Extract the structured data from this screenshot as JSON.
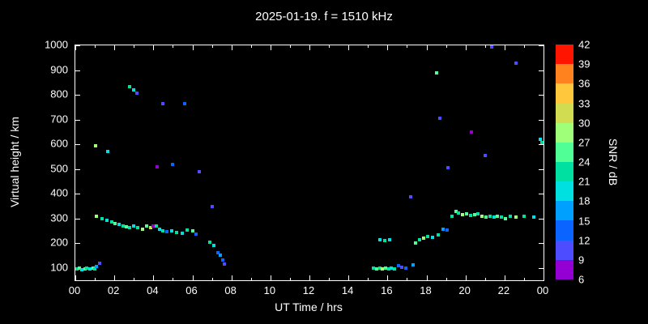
{
  "title": "2025-01-19. f = 1510 kHz",
  "chart_data": {
    "type": "scatter",
    "title": "2025-01-19. f = 1510 kHz",
    "xlabel": "UT Time / hrs",
    "ylabel": "Virtual height / km",
    "xlim": [
      0,
      24
    ],
    "ylim": [
      50,
      1000
    ],
    "background": "#000000",
    "axis_color": "#ffffff",
    "grid": false,
    "x_ticks": [
      {
        "v": 0,
        "label": "00"
      },
      {
        "v": 2,
        "label": "02"
      },
      {
        "v": 4,
        "label": "04"
      },
      {
        "v": 6,
        "label": "06"
      },
      {
        "v": 8,
        "label": "08"
      },
      {
        "v": 10,
        "label": "10"
      },
      {
        "v": 12,
        "label": "12"
      },
      {
        "v": 14,
        "label": "14"
      },
      {
        "v": 16,
        "label": "16"
      },
      {
        "v": 18,
        "label": "18"
      },
      {
        "v": 20,
        "label": "20"
      },
      {
        "v": 22,
        "label": "22"
      },
      {
        "v": 24,
        "label": "00"
      }
    ],
    "y_ticks": [
      100,
      200,
      300,
      400,
      500,
      600,
      700,
      800,
      900,
      1000
    ],
    "colorbar": {
      "label": "SNR / dB",
      "ticks": [
        6,
        9,
        12,
        15,
        18,
        21,
        24,
        27,
        30,
        33,
        36,
        39,
        42
      ],
      "segment_colors": [
        "#9400d3",
        "#4d4dff",
        "#0a64ff",
        "#00a0ff",
        "#00e0e0",
        "#00e0a0",
        "#50ff96",
        "#a0ff78",
        "#d2dc50",
        "#ffc83c",
        "#ff821e",
        "#ff1400"
      ]
    },
    "points_format": [
      "ut_hours",
      "virtual_height_km",
      "snr_db"
    ],
    "points": [
      [
        0.1,
        95,
        21
      ],
      [
        0.2,
        100,
        24
      ],
      [
        0.35,
        92,
        18
      ],
      [
        0.5,
        97,
        24
      ],
      [
        0.6,
        100,
        21
      ],
      [
        0.75,
        95,
        18
      ],
      [
        0.9,
        100,
        24
      ],
      [
        1.0,
        96,
        21
      ],
      [
        1.1,
        105,
        15
      ],
      [
        1.25,
        120,
        9
      ],
      [
        1.1,
        310,
        27
      ],
      [
        1.35,
        300,
        21
      ],
      [
        1.6,
        292,
        18
      ],
      [
        1.85,
        285,
        21
      ],
      [
        2.05,
        280,
        24
      ],
      [
        2.25,
        276,
        18
      ],
      [
        2.45,
        270,
        21
      ],
      [
        2.6,
        265,
        24
      ],
      [
        2.8,
        263,
        21
      ],
      [
        3.0,
        268,
        18
      ],
      [
        3.2,
        262,
        21
      ],
      [
        3.45,
        258,
        27
      ],
      [
        3.65,
        268,
        24
      ],
      [
        3.85,
        262,
        30
      ],
      [
        4.0,
        270,
        6
      ],
      [
        4.15,
        268,
        21
      ],
      [
        4.3,
        255,
        18
      ],
      [
        4.5,
        250,
        21
      ],
      [
        4.7,
        246,
        12
      ],
      [
        4.95,
        250,
        18
      ],
      [
        5.2,
        244,
        21
      ],
      [
        5.5,
        240,
        18
      ],
      [
        5.75,
        254,
        21
      ],
      [
        6.0,
        250,
        24
      ],
      [
        6.2,
        236,
        12
      ],
      [
        6.9,
        205,
        21
      ],
      [
        7.1,
        192,
        18
      ],
      [
        7.3,
        162,
        12
      ],
      [
        7.45,
        150,
        15
      ],
      [
        7.55,
        132,
        12
      ],
      [
        7.65,
        116,
        9
      ],
      [
        1.05,
        595,
        27
      ],
      [
        1.65,
        572,
        18
      ],
      [
        2.8,
        832,
        21
      ],
      [
        3.0,
        820,
        18
      ],
      [
        3.15,
        808,
        9
      ],
      [
        4.5,
        765,
        9
      ],
      [
        5.6,
        763,
        12
      ],
      [
        4.2,
        507,
        6
      ],
      [
        5.0,
        520,
        12
      ],
      [
        6.35,
        488,
        9
      ],
      [
        7.0,
        347,
        9
      ],
      [
        15.3,
        98,
        21
      ],
      [
        15.45,
        95,
        24
      ],
      [
        15.6,
        100,
        21
      ],
      [
        15.75,
        96,
        27
      ],
      [
        15.9,
        100,
        24
      ],
      [
        16.05,
        95,
        21
      ],
      [
        16.2,
        99,
        18
      ],
      [
        16.35,
        95,
        21
      ],
      [
        16.55,
        108,
        12
      ],
      [
        16.75,
        104,
        9
      ],
      [
        16.95,
        100,
        12
      ],
      [
        17.3,
        112,
        15
      ],
      [
        15.6,
        214,
        18
      ],
      [
        15.85,
        210,
        21
      ],
      [
        16.1,
        214,
        18
      ],
      [
        17.45,
        200,
        24
      ],
      [
        17.65,
        213,
        21
      ],
      [
        17.85,
        220,
        27
      ],
      [
        18.05,
        228,
        21
      ],
      [
        18.3,
        224,
        18
      ],
      [
        18.6,
        234,
        21
      ],
      [
        18.85,
        256,
        15
      ],
      [
        19.05,
        252,
        12
      ],
      [
        19.3,
        308,
        21
      ],
      [
        19.5,
        330,
        24
      ],
      [
        19.65,
        322,
        21
      ],
      [
        19.85,
        316,
        27
      ],
      [
        20.05,
        320,
        24
      ],
      [
        20.25,
        312,
        21
      ],
      [
        20.45,
        316,
        24
      ],
      [
        20.65,
        320,
        21
      ],
      [
        20.85,
        310,
        27
      ],
      [
        21.05,
        306,
        24
      ],
      [
        21.25,
        310,
        21
      ],
      [
        21.45,
        304,
        18
      ],
      [
        21.65,
        310,
        24
      ],
      [
        21.85,
        306,
        21
      ],
      [
        22.05,
        300,
        24
      ],
      [
        22.3,
        308,
        21
      ],
      [
        22.6,
        304,
        27
      ],
      [
        23.0,
        310,
        21
      ],
      [
        23.5,
        304,
        18
      ],
      [
        17.2,
        386,
        9
      ],
      [
        18.5,
        888,
        24
      ],
      [
        18.7,
        706,
        9
      ],
      [
        19.1,
        505,
        9
      ],
      [
        20.3,
        650,
        6
      ],
      [
        21.0,
        556,
        9
      ],
      [
        21.35,
        995,
        9
      ],
      [
        22.6,
        928,
        9
      ],
      [
        23.85,
        620,
        18
      ],
      [
        23.9,
        608,
        21
      ]
    ]
  }
}
